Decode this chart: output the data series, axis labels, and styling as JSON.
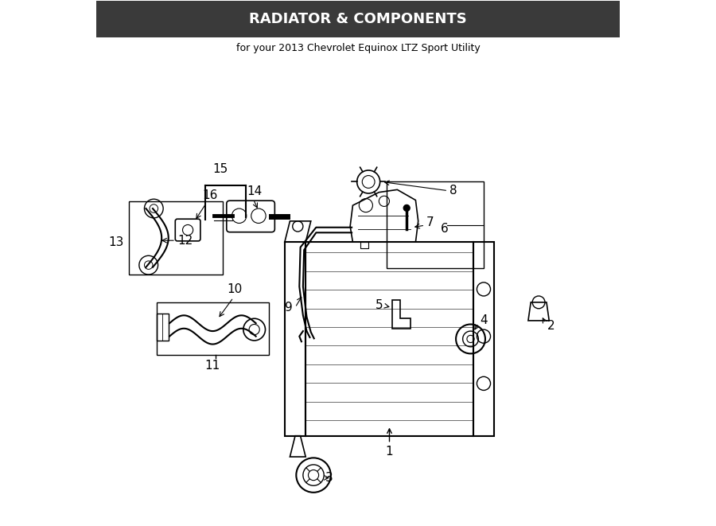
{
  "title": "RADIATOR & COMPONENTS",
  "subtitle": "for your 2013 Chevrolet Equinox LTZ Sport Utility",
  "bg_color": "#ffffff",
  "line_color": "#000000",
  "fig_width": 9.0,
  "fig_height": 6.61,
  "dpi": 100
}
